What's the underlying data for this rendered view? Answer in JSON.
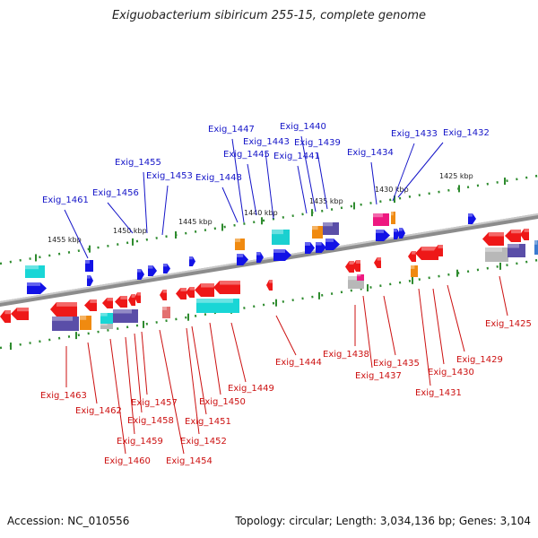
{
  "title": "Exiguobacterium sibiricum 255-15, complete genome",
  "accession": "Accession: NC_010556",
  "summary": "Topology: circular; Length: 3,034,136 bp; Genes: 3,104",
  "colors": {
    "backbone": "#8c8c8c",
    "tick": "#2e8b2e",
    "label_plus": "#1414c8",
    "label_minus": "#cc1010",
    "gene_plus": "#1212e6",
    "gene_minus": "#ee1818"
  },
  "scale_labels": [
    "1455 kbp",
    "1450 kbp",
    "1445 kbp",
    "1440 kbp",
    "1435 kbp",
    "1430 kbp",
    "1425 kbp"
  ],
  "plus_labels": [
    "Exig_1461",
    "Exig_1456",
    "Exig_1455",
    "Exig_1453",
    "Exig_1448",
    "Exig_1447",
    "Exig_1445",
    "Exig_1443",
    "Exig_1441",
    "Exig_1440",
    "Exig_1439",
    "Exig_1434",
    "Exig_1433",
    "Exig_1432"
  ],
  "minus_labels": [
    "Exig_1463",
    "Exig_1462",
    "Exig_1460",
    "Exig_1459",
    "Exig_1458",
    "Exig_1457",
    "Exig_1454",
    "Exig_1452",
    "Exig_1451",
    "Exig_1450",
    "Exig_1449",
    "Exig_1444",
    "Exig_1438",
    "Exig_1437",
    "Exig_1435",
    "Exig_1431",
    "Exig_1430",
    "Exig_1429",
    "Exig_1425"
  ]
}
